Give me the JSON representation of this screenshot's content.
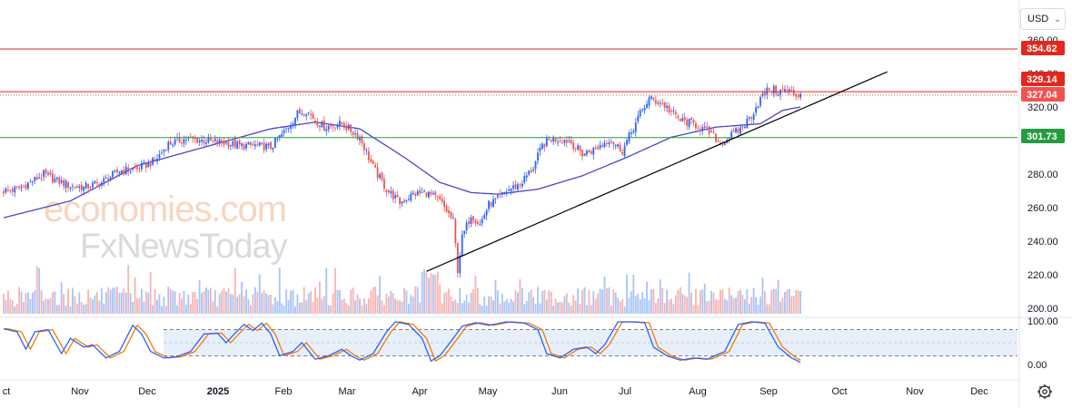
{
  "toolbar": {
    "currency_label": "USD",
    "settings_icon": "gear-icon"
  },
  "watermark": {
    "line1": "economies.com",
    "line2": "FxNewsToday"
  },
  "colors": {
    "up": "#2962ff",
    "down": "#ef5350",
    "ma": "#4a47c9",
    "resistance": "#e0281e",
    "support": "#279b3f",
    "trendline": "#000000",
    "stoch_k": "#2962ff",
    "stoch_d": "#f57c00",
    "stoch_band": "#dde8f8"
  },
  "price_levels": [
    {
      "label": "354.62",
      "value": 354.62,
      "color": "#e0281e",
      "style": "solid"
    },
    {
      "label": "329.14",
      "value": 329.14,
      "color": "#e0281e",
      "style": "solid"
    },
    {
      "label": "327.04",
      "value": 327.04,
      "color": "#ef5350",
      "style": "dotted"
    },
    {
      "label": "301.73",
      "value": 301.73,
      "color": "#279b3f",
      "style": "solid"
    }
  ],
  "chart_data": [
    {
      "type": "candlestick",
      "title": "",
      "y_axis_ticks": [
        "360.00",
        "340.00",
        "320.00",
        "280.00",
        "260.00",
        "240.00",
        "220.00",
        "200.00"
      ],
      "ylim": [
        200,
        362
      ],
      "x_axis_ticks": [
        "ct",
        "Nov",
        "Dec",
        "2025",
        "Feb",
        "Mar",
        "Apr",
        "May",
        "Jun",
        "Jul",
        "Aug",
        "Sep",
        "Oct",
        "Nov",
        "Dec"
      ],
      "price_anchors": [
        [
          0,
          270
        ],
        [
          6,
          271
        ],
        [
          12,
          275
        ],
        [
          18,
          280
        ],
        [
          24,
          276
        ],
        [
          30,
          273
        ],
        [
          36,
          272
        ],
        [
          44,
          275
        ],
        [
          52,
          282
        ],
        [
          60,
          283
        ],
        [
          68,
          288
        ],
        [
          74,
          298
        ],
        [
          82,
          301
        ],
        [
          90,
          300
        ],
        [
          98,
          299
        ],
        [
          106,
          297
        ],
        [
          114,
          297
        ],
        [
          120,
          296
        ],
        [
          126,
          305
        ],
        [
          132,
          316
        ],
        [
          136,
          318
        ],
        [
          140,
          312
        ],
        [
          144,
          308
        ],
        [
          152,
          310
        ],
        [
          160,
          302
        ],
        [
          166,
          284
        ],
        [
          172,
          271
        ],
        [
          178,
          263
        ],
        [
          184,
          268
        ],
        [
          190,
          269
        ],
        [
          196,
          264
        ],
        [
          202,
          252
        ],
        [
          204,
          223
        ],
        [
          206,
          242
        ],
        [
          210,
          256
        ],
        [
          214,
          250
        ],
        [
          218,
          262
        ],
        [
          222,
          265
        ],
        [
          226,
          270
        ],
        [
          232,
          274
        ],
        [
          238,
          284
        ],
        [
          242,
          297
        ],
        [
          246,
          301
        ],
        [
          254,
          300
        ],
        [
          260,
          292
        ],
        [
          266,
          295
        ],
        [
          272,
          301
        ],
        [
          278,
          294
        ],
        [
          282,
          305
        ],
        [
          286,
          316
        ],
        [
          290,
          325
        ],
        [
          296,
          322
        ],
        [
          300,
          317
        ],
        [
          304,
          312
        ],
        [
          310,
          310
        ],
        [
          314,
          307
        ],
        [
          318,
          304
        ],
        [
          322,
          298
        ],
        [
          328,
          304
        ],
        [
          332,
          308
        ],
        [
          336,
          315
        ],
        [
          340,
          325
        ],
        [
          344,
          331
        ],
        [
          348,
          329
        ],
        [
          352,
          330
        ],
        [
          356,
          327
        ],
        [
          358,
          328
        ]
      ],
      "moving_average_anchors": [
        [
          0,
          254
        ],
        [
          30,
          264
        ],
        [
          60,
          285
        ],
        [
          90,
          296
        ],
        [
          120,
          307
        ],
        [
          140,
          311
        ],
        [
          160,
          307
        ],
        [
          180,
          290
        ],
        [
          196,
          275
        ],
        [
          210,
          269
        ],
        [
          222,
          268
        ],
        [
          240,
          271
        ],
        [
          260,
          279
        ],
        [
          280,
          290
        ],
        [
          300,
          302
        ],
        [
          320,
          308
        ],
        [
          340,
          310
        ],
        [
          350,
          318
        ],
        [
          358,
          320
        ]
      ],
      "trendline": {
        "start": [
          190,
          222
        ],
        "end": [
          397,
          341
        ]
      },
      "volume_axis_max": 100,
      "stochastic": {
        "y_axis_ticks": [
          "100.00",
          "0.00"
        ],
        "overbought": 80,
        "oversold": 20,
        "k_anchors": [
          [
            0,
            82
          ],
          [
            6,
            75
          ],
          [
            10,
            35
          ],
          [
            14,
            75
          ],
          [
            20,
            80
          ],
          [
            26,
            25
          ],
          [
            30,
            60
          ],
          [
            36,
            40
          ],
          [
            40,
            45
          ],
          [
            46,
            15
          ],
          [
            52,
            30
          ],
          [
            58,
            90
          ],
          [
            62,
            70
          ],
          [
            66,
            30
          ],
          [
            72,
            15
          ],
          [
            78,
            18
          ],
          [
            84,
            30
          ],
          [
            90,
            70
          ],
          [
            96,
            72
          ],
          [
            100,
            50
          ],
          [
            104,
            72
          ],
          [
            108,
            92
          ],
          [
            112,
            78
          ],
          [
            116,
            95
          ],
          [
            120,
            70
          ],
          [
            124,
            20
          ],
          [
            130,
            30
          ],
          [
            134,
            50
          ],
          [
            140,
            12
          ],
          [
            146,
            20
          ],
          [
            152,
            35
          ],
          [
            156,
            20
          ],
          [
            160,
            10
          ],
          [
            166,
            25
          ],
          [
            172,
            75
          ],
          [
            176,
            98
          ],
          [
            182,
            92
          ],
          [
            188,
            60
          ],
          [
            192,
            8
          ],
          [
            196,
            20
          ],
          [
            202,
            60
          ],
          [
            206,
            88
          ],
          [
            212,
            96
          ],
          [
            218,
            90
          ],
          [
            226,
            98
          ],
          [
            234,
            95
          ],
          [
            240,
            80
          ],
          [
            244,
            25
          ],
          [
            250,
            15
          ],
          [
            256,
            35
          ],
          [
            262,
            40
          ],
          [
            266,
            25
          ],
          [
            270,
            45
          ],
          [
            276,
            98
          ],
          [
            282,
            98
          ],
          [
            288,
            96
          ],
          [
            292,
            40
          ],
          [
            298,
            20
          ],
          [
            304,
            10
          ],
          [
            310,
            15
          ],
          [
            316,
            12
          ],
          [
            324,
            30
          ],
          [
            330,
            92
          ],
          [
            336,
            98
          ],
          [
            342,
            95
          ],
          [
            348,
            40
          ],
          [
            354,
            15
          ],
          [
            358,
            5
          ]
        ]
      }
    }
  ]
}
